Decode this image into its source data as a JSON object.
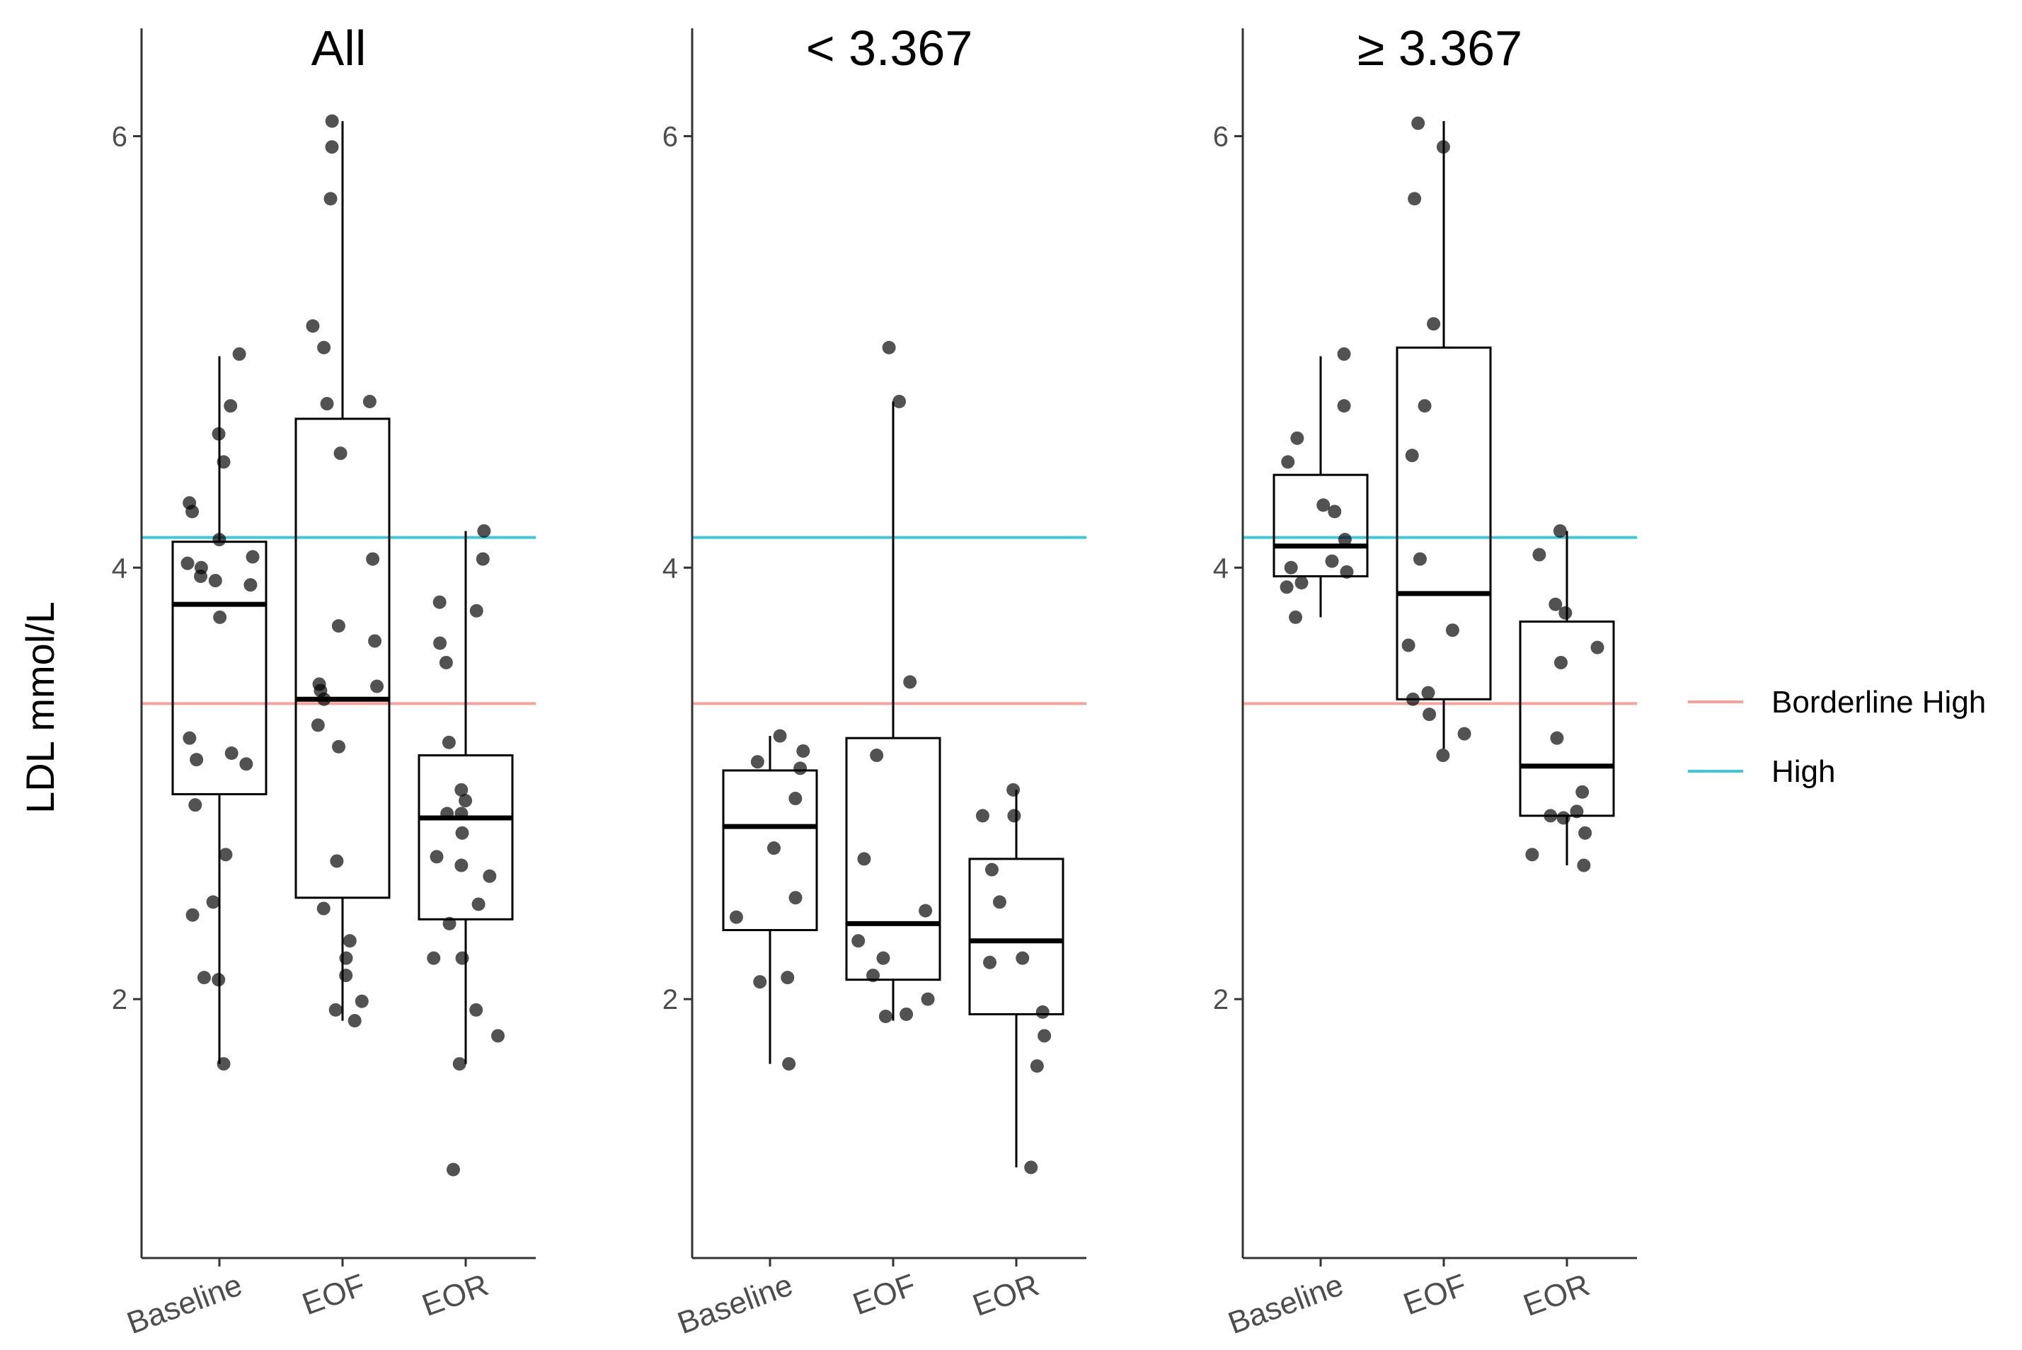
{
  "chart_data": {
    "type": "box",
    "ylabel": "LDL mmol/L",
    "ylim": [
      0.8,
      6.5
    ],
    "yticks": [
      2,
      4,
      6
    ],
    "categories": [
      "Baseline",
      "EOF",
      "EOR"
    ],
    "reference_lines": [
      {
        "name": "Borderline High",
        "value": 3.37,
        "color": "#f8a19a"
      },
      {
        "name": "High",
        "value": 4.14,
        "color": "#3fc8d6"
      }
    ],
    "legend": {
      "position": "right",
      "entries": [
        {
          "label": "Borderline High",
          "color": "#f8a19a"
        },
        {
          "label": "High",
          "color": "#3fc8d6"
        }
      ]
    },
    "panels": [
      {
        "title": "All",
        "boxes": [
          {
            "category": "Baseline",
            "whisker_low": 1.7,
            "q1": 2.95,
            "median": 3.83,
            "q3": 4.12,
            "whisker_high": 4.98
          },
          {
            "category": "EOF",
            "whisker_low": 1.9,
            "q1": 2.47,
            "median": 3.39,
            "q3": 4.69,
            "whisker_high": 6.07
          },
          {
            "category": "EOR",
            "whisker_low": 1.7,
            "q1": 2.37,
            "median": 2.84,
            "q3": 3.13,
            "whisker_high": 4.17
          }
        ],
        "points": [
          {
            "category": "Baseline",
            "values": [
              4.62,
              4.49,
              4.26,
              4.0,
              3.94,
              3.77,
              3.21,
              3.09,
              2.67,
              2.45,
              2.1,
              4.99,
              4.75,
              4.3,
              4.13,
              3.96,
              3.14,
              2.9,
              1.7,
              2.09,
              3.11,
              4.02,
              3.92,
              4.05,
              2.39
            ]
          },
          {
            "category": "EOF",
            "values": [
              3.73,
              3.66,
              3.43,
              2.64,
              2.19,
              1.9,
              4.76,
              3.46,
              3.45,
              3.17,
              2.42,
              2.11,
              5.71,
              3.27,
              1.99,
              6.07,
              5.95,
              5.12,
              4.04,
              3.39,
              4.77,
              4.53,
              5.02,
              2.27,
              1.95
            ]
          },
          {
            "category": "EOR",
            "values": [
              4.17,
              3.8,
              3.65,
              3.56,
              2.77,
              2.66,
              2.19,
              1.7,
              2.44,
              1.95,
              1.83,
              1.21,
              2.97,
              2.92,
              2.62,
              2.57,
              2.19,
              2.86,
              3.19,
              2.86,
              4.04,
              3.84,
              2.35
            ]
          }
        ]
      },
      {
        "title": "< 3.367",
        "boxes": [
          {
            "category": "Baseline",
            "whisker_low": 1.7,
            "q1": 2.32,
            "median": 2.8,
            "q3": 3.06,
            "whisker_high": 3.22
          },
          {
            "category": "EOF",
            "whisker_low": 1.9,
            "q1": 2.09,
            "median": 2.35,
            "q3": 3.21,
            "whisker_high": 4.77
          },
          {
            "category": "EOR",
            "whisker_low": 1.22,
            "q1": 1.93,
            "median": 2.27,
            "q3": 2.65,
            "whisker_high": 2.97
          }
        ],
        "points": [
          {
            "category": "Baseline",
            "values": [
              1.7,
              2.93,
              3.15,
              3.07,
              2.47,
              2.1,
              3.22,
              2.7,
              2.38,
              3.1,
              2.08
            ]
          },
          {
            "category": "EOF",
            "values": [
              2.11,
              1.92,
              1.93,
              3.47,
              3.13,
              2.41,
              2.27,
              2.19,
              4.77,
              5.02,
              2.65,
              2.0
            ]
          },
          {
            "category": "EOR",
            "values": [
              2.97,
              1.94,
              2.19,
              2.85,
              2.17,
              1.69,
              1.83,
              2.45,
              2.85,
              2.6,
              1.22
            ]
          }
        ]
      },
      {
        "title": "≥ 3.367",
        "boxes": [
          {
            "category": "Baseline",
            "whisker_low": 3.77,
            "q1": 3.96,
            "median": 4.1,
            "q3": 4.43,
            "whisker_high": 4.98
          },
          {
            "category": "EOF",
            "whisker_low": 3.16,
            "q1": 3.39,
            "median": 3.88,
            "q3": 5.02,
            "whisker_high": 6.07
          },
          {
            "category": "EOR",
            "whisker_low": 2.62,
            "q1": 2.85,
            "median": 3.08,
            "q3": 3.75,
            "whisker_high": 4.17
          }
        ],
        "points": [
          {
            "category": "Baseline",
            "values": [
              4.26,
              4.03,
              3.98,
              3.93,
              4.99,
              4.6,
              4.49,
              4.0,
              3.91,
              4.29,
              4.75,
              4.13,
              3.77
            ]
          },
          {
            "category": "EOF",
            "values": [
              5.95,
              4.52,
              3.42,
              3.13,
              3.39,
              5.13,
              4.75,
              3.32,
              3.23,
              6.06,
              4.04,
              3.64,
              3.71,
              5.71
            ]
          },
          {
            "category": "EOR",
            "values": [
              4.17,
              4.06,
              3.79,
              3.56,
              2.67,
              2.77,
              2.84,
              2.62,
              3.83,
              3.63,
              2.96,
              2.87,
              2.85,
              3.21
            ]
          }
        ]
      }
    ]
  }
}
